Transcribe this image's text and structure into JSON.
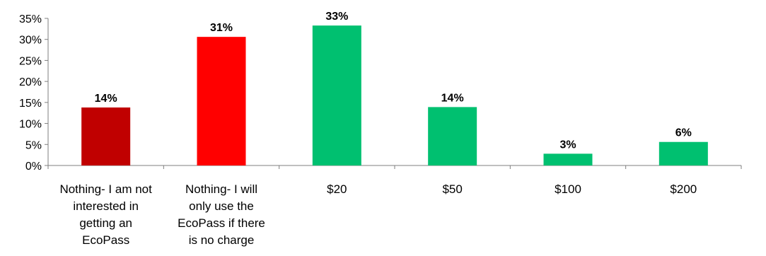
{
  "chart_data": {
    "type": "bar",
    "categories": [
      [
        "Nothing- I am not",
        "interested in",
        "getting an",
        "EcoPass"
      ],
      [
        "Nothing- I will",
        "only use the",
        "EcoPass if there",
        "is no charge"
      ],
      [
        "$20"
      ],
      [
        "$50"
      ],
      [
        "$100"
      ],
      [
        "$200"
      ]
    ],
    "values": [
      13.8,
      30.6,
      33.3,
      13.9,
      2.8,
      5.6
    ],
    "data_labels": [
      "14%",
      "31%",
      "33%",
      "14%",
      "3%",
      "6%"
    ],
    "bar_colors": [
      "#C00000",
      "#FF0000",
      "#00C070",
      "#00C070",
      "#00C070",
      "#00C070"
    ],
    "y_ticks": [
      "0%",
      "5%",
      "10%",
      "15%",
      "20%",
      "25%",
      "30%",
      "35%"
    ],
    "ylim": [
      0,
      35
    ],
    "title": "",
    "xlabel": "",
    "ylabel": "",
    "grid": false,
    "legend": "none"
  }
}
